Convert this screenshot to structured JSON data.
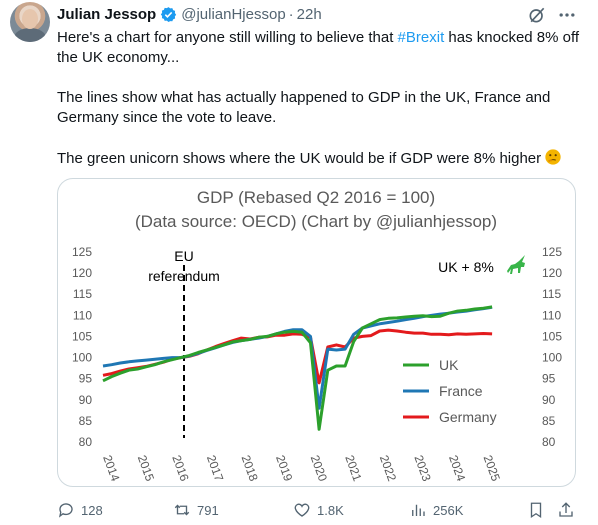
{
  "tweet": {
    "author_name": "Julian Jessop",
    "handle": "@julianHjessop",
    "separator": "·",
    "time": "22h",
    "text_line1_before": "Here's a chart for anyone still willing to believe that ",
    "hashtag": "#Brexit",
    "text_line1_after": " has knocked 8% off the UK economy...",
    "paragraph2": "The lines show what has actually happened to GDP in the UK, France and Germany since the vote to leave.",
    "paragraph3": "The green unicorn shows where the UK would be if GDP were 8% higher",
    "emoji": "thinking-face-icon"
  },
  "metrics": {
    "replies": "128",
    "reposts": "791",
    "likes": "1.8K",
    "views": "256K"
  },
  "colors": {
    "accent": "#1d9bf0",
    "uk": "#2ca02c",
    "france": "#1f77b4",
    "germany": "#e31a1c",
    "muted": "#536471"
  },
  "chart_data": {
    "type": "line",
    "title": "GDP (Rebased Q2 2016 = 100)",
    "subtitle": "(Data source: OECD) (Chart by @julianhjessop)",
    "xlabel": "",
    "ylabel": "",
    "ylim": [
      80,
      125
    ],
    "yticks": [
      "80",
      "85",
      "90",
      "95",
      "100",
      "105",
      "110",
      "115",
      "120",
      "125"
    ],
    "xticks": [
      "2014",
      "2015",
      "2016",
      "2017",
      "2018",
      "2019",
      "2020",
      "2021",
      "2022",
      "2023",
      "2024",
      "2025"
    ],
    "annotation_eu": "EU",
    "annotation_ref": "referendum",
    "annotation_uk8": "UK + 8%",
    "legend_placement": "bottom-right",
    "grid": false,
    "series": [
      {
        "name": "UK",
        "color": "#2ca02c",
        "x": [
          2014.0,
          2014.25,
          2014.5,
          2014.75,
          2015.0,
          2015.25,
          2015.5,
          2015.75,
          2016.0,
          2016.25,
          2016.5,
          2016.75,
          2017.0,
          2017.25,
          2017.5,
          2017.75,
          2018.0,
          2018.25,
          2018.5,
          2018.75,
          2019.0,
          2019.25,
          2019.5,
          2019.75,
          2020.0,
          2020.25,
          2020.5,
          2020.75,
          2021.0,
          2021.25,
          2021.5,
          2021.75,
          2022.0,
          2022.25,
          2022.5,
          2022.75,
          2023.0,
          2023.25,
          2023.5,
          2023.75,
          2024.0,
          2024.25,
          2024.5,
          2024.75,
          2025.0,
          2025.25
        ],
        "y": [
          94.5,
          95.5,
          96.3,
          97.0,
          97.3,
          97.8,
          98.3,
          99.0,
          99.5,
          100.0,
          100.5,
          101.2,
          101.8,
          102.4,
          103.0,
          103.7,
          104.0,
          104.3,
          104.8,
          105.0,
          105.6,
          106.0,
          106.2,
          106.0,
          103.5,
          83.0,
          97.0,
          98.0,
          98.0,
          103.8,
          107.0,
          108.0,
          109.0,
          109.3,
          109.4,
          109.6,
          109.8,
          109.9,
          109.7,
          109.8,
          110.5,
          111.0,
          111.2,
          111.5,
          111.7,
          112.0
        ]
      },
      {
        "name": "France",
        "color": "#1f77b4",
        "x": [
          2014.0,
          2014.25,
          2014.5,
          2014.75,
          2015.0,
          2015.25,
          2015.5,
          2015.75,
          2016.0,
          2016.25,
          2016.5,
          2016.75,
          2017.0,
          2017.25,
          2017.5,
          2017.75,
          2018.0,
          2018.25,
          2018.5,
          2018.75,
          2019.0,
          2019.25,
          2019.5,
          2019.75,
          2020.0,
          2020.25,
          2020.5,
          2020.75,
          2021.0,
          2021.25,
          2021.5,
          2021.75,
          2022.0,
          2022.25,
          2022.5,
          2022.75,
          2023.0,
          2023.25,
          2023.5,
          2023.75,
          2024.0,
          2024.25,
          2024.5,
          2024.75,
          2025.0,
          2025.25
        ],
        "y": [
          98.0,
          98.3,
          98.7,
          99.0,
          99.2,
          99.4,
          99.6,
          99.8,
          100.0,
          100.0,
          100.4,
          101.0,
          101.7,
          102.3,
          103.0,
          103.6,
          104.0,
          104.3,
          104.6,
          105.0,
          105.6,
          106.2,
          106.6,
          106.6,
          105.0,
          88.0,
          102.0,
          101.8,
          102.0,
          105.5,
          107.0,
          107.5,
          108.0,
          108.3,
          108.6,
          109.0,
          109.3,
          109.7,
          110.0,
          110.3,
          110.5,
          110.8,
          111.0,
          111.3,
          111.6,
          111.9
        ]
      },
      {
        "name": "Germany",
        "color": "#e31a1c",
        "x": [
          2014.0,
          2014.25,
          2014.5,
          2014.75,
          2015.0,
          2015.25,
          2015.5,
          2015.75,
          2016.0,
          2016.25,
          2016.5,
          2016.75,
          2017.0,
          2017.25,
          2017.5,
          2017.75,
          2018.0,
          2018.25,
          2018.5,
          2018.75,
          2019.0,
          2019.25,
          2019.5,
          2019.75,
          2020.0,
          2020.25,
          2020.5,
          2020.75,
          2021.0,
          2021.25,
          2021.5,
          2021.75,
          2022.0,
          2022.25,
          2022.5,
          2022.75,
          2023.0,
          2023.25,
          2023.5,
          2023.75,
          2024.0,
          2024.25,
          2024.5,
          2024.75,
          2025.0,
          2025.25
        ],
        "y": [
          95.8,
          96.2,
          96.8,
          97.3,
          97.6,
          97.9,
          98.4,
          98.9,
          99.6,
          100.0,
          100.3,
          100.9,
          101.8,
          102.6,
          103.3,
          104.0,
          104.6,
          104.4,
          104.8,
          104.9,
          105.3,
          105.3,
          105.6,
          105.5,
          104.8,
          94.0,
          102.5,
          103.0,
          102.5,
          104.6,
          105.0,
          105.2,
          106.3,
          106.5,
          106.3,
          106.0,
          105.8,
          105.8,
          105.5,
          105.5,
          105.4,
          105.6,
          105.5,
          105.6,
          105.7,
          105.6
        ]
      }
    ]
  }
}
